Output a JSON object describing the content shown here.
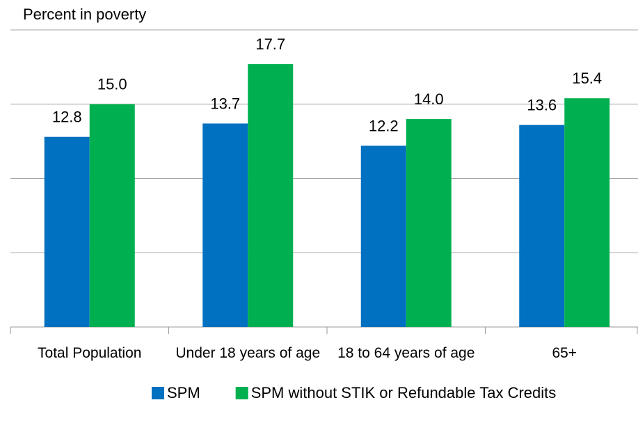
{
  "chart_data": {
    "type": "bar",
    "y_axis_label": "Percent in poverty",
    "categories": [
      "Total Population",
      "Under 18 years of age",
      "18 to 64 years of age",
      "65+"
    ],
    "series": [
      {
        "name": "SPM",
        "color": "#0070c0",
        "values": [
          12.8,
          13.7,
          12.2,
          13.6
        ],
        "value_labels": [
          "12.8",
          "13.7",
          "12.2",
          "13.6"
        ]
      },
      {
        "name": "SPM without STIK or Refundable Tax Credits",
        "color": "#00b050",
        "values": [
          15.0,
          17.7,
          14.0,
          15.4
        ],
        "value_labels": [
          "15.0",
          "17.7",
          "14.0",
          "15.4"
        ]
      }
    ],
    "ylim": [
      0,
      20
    ],
    "yticks": [
      0,
      5,
      10,
      15,
      20
    ],
    "grid": true,
    "legend": "bottom"
  }
}
